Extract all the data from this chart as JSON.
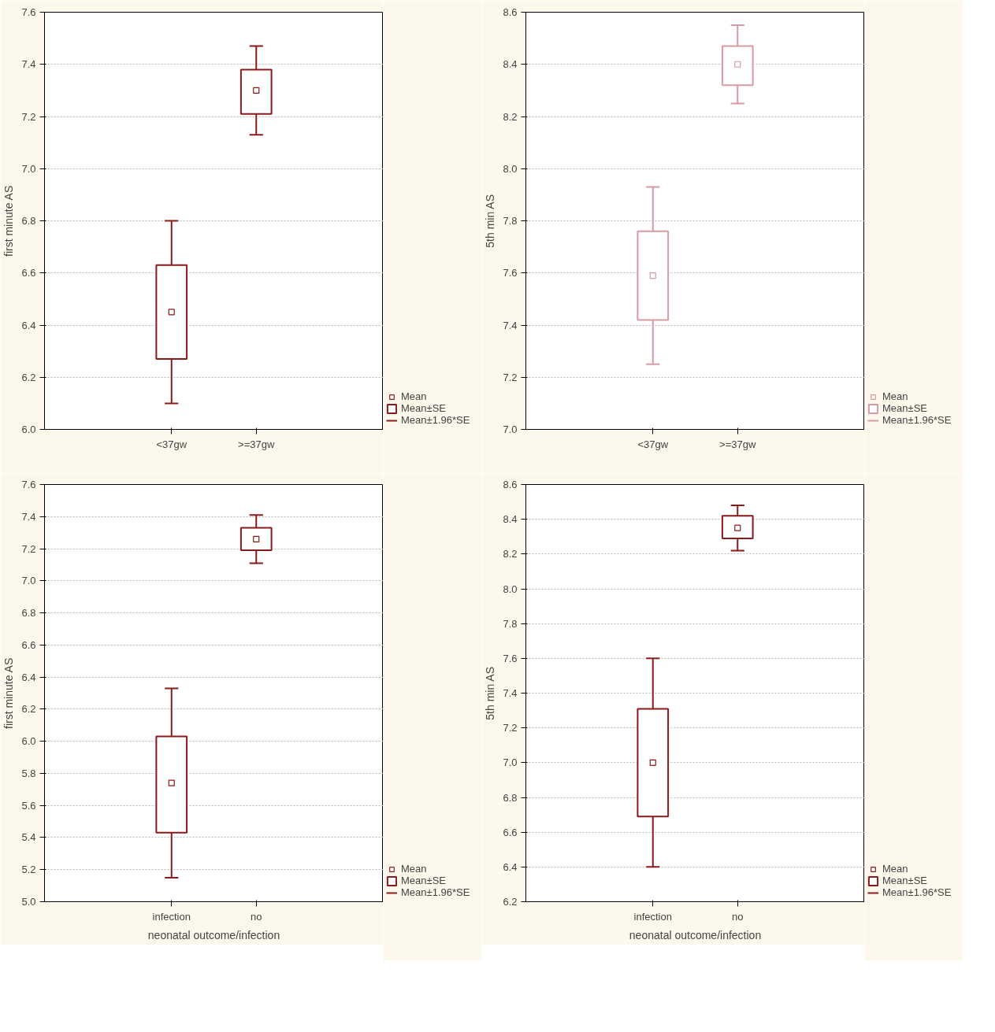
{
  "chart_data": [
    {
      "type": "box",
      "ylabel": "first minute AS",
      "categories": [
        "<37gw",
        ">=37gw"
      ],
      "ylim": [
        6.0,
        7.6
      ],
      "yticks": [
        {
          "value": 6.0,
          "label": "6.0"
        },
        6.2,
        6.4,
        6.6,
        6.8,
        {
          "value": 7.0,
          "label": "7.0"
        },
        7.2,
        7.4,
        7.6
      ],
      "grid": "y",
      "legend": "bottom right",
      "annotations": [
        "Mean±1.96*SE"
      ],
      "series": [
        {
          "name": "Mean",
          "type": "scatter",
          "marker": "square",
          "color": "#8b1a1a",
          "values": [
            6.45,
            7.3
          ],
          "errors": [
            0.35,
            0.17
          ]
        },
        {
          "name": "Mean±SE",
          "type": "bar",
          "color": "#8b1a1a",
          "base": [
            6.27,
            7.21
          ],
          "values": [
            0.36,
            0.17
          ]
        }
      ]
    },
    {
      "type": "box",
      "ylabel": "5th min AS",
      "categories": [
        "<37gw",
        ">=37gw"
      ],
      "ylim": [
        7.0,
        8.6
      ],
      "yticks": [
        {
          "value": 7.0,
          "label": "7.0"
        },
        7.2,
        7.4,
        7.6,
        7.8,
        {
          "value": 8.0,
          "label": "8.0"
        },
        8.2,
        8.4,
        8.6
      ],
      "grid": "y",
      "legend": "bottom right",
      "annotations": [
        "Mean±1.96*SE"
      ],
      "series": [
        {
          "name": "Mean",
          "type": "scatter",
          "marker": "square",
          "color": "#d89aa4",
          "values": [
            7.59,
            8.4
          ],
          "errors": [
            0.34,
            0.15
          ]
        },
        {
          "name": "Mean±SE",
          "type": "bar",
          "color": "#d89aa4",
          "base": [
            7.42,
            8.32
          ],
          "values": [
            0.34,
            0.15
          ]
        }
      ]
    },
    {
      "type": "box",
      "xlabel": "neonatal outcome/infection",
      "ylabel": "first minute AS",
      "categories": [
        "infection",
        "no"
      ],
      "ylim": [
        5.0,
        7.6
      ],
      "yticks": [
        {
          "value": 5.0,
          "label": "5.0"
        },
        5.2,
        5.4,
        5.6,
        5.8,
        {
          "value": 6.0,
          "label": "6.0"
        },
        6.2,
        6.4,
        6.6,
        6.8,
        {
          "value": 7.0,
          "label": "7.0"
        },
        7.2,
        7.4,
        7.6
      ],
      "grid": "y",
      "legend": "bottom right",
      "annotations": [
        "Mean±1.96*SE"
      ],
      "series": [
        {
          "name": "Mean",
          "type": "scatter",
          "marker": "square",
          "color": "#8b1a1a",
          "values": [
            5.74,
            7.26
          ],
          "errors": [
            0.59,
            0.15
          ]
        },
        {
          "name": "Mean±SE",
          "type": "bar",
          "color": "#8b1a1a",
          "base": [
            5.43,
            7.19
          ],
          "values": [
            0.6,
            0.14
          ]
        }
      ]
    },
    {
      "type": "box",
      "xlabel": "neonatal outcome/infection",
      "ylabel": "5th min AS",
      "categories": [
        "infection",
        "no"
      ],
      "ylim": [
        6.2,
        8.6
      ],
      "yticks": [
        6.2,
        6.4,
        6.6,
        6.8,
        {
          "value": 7.0,
          "label": "7.0"
        },
        7.2,
        7.4,
        7.6,
        7.8,
        {
          "value": 8.0,
          "label": "8.0"
        },
        8.2,
        8.4,
        8.6
      ],
      "grid": "y",
      "legend": "bottom right",
      "annotations": [
        "Mean±1.96*SE"
      ],
      "series": [
        {
          "name": "Mean",
          "type": "scatter",
          "marker": "square",
          "color": "#8b1a1a",
          "values": [
            7.0,
            8.35
          ],
          "errors": [
            0.6,
            0.13
          ]
        },
        {
          "name": "Mean±SE",
          "type": "bar",
          "color": "#8b1a1a",
          "base": [
            6.69,
            8.29
          ],
          "values": [
            0.62,
            0.13
          ]
        }
      ]
    }
  ]
}
